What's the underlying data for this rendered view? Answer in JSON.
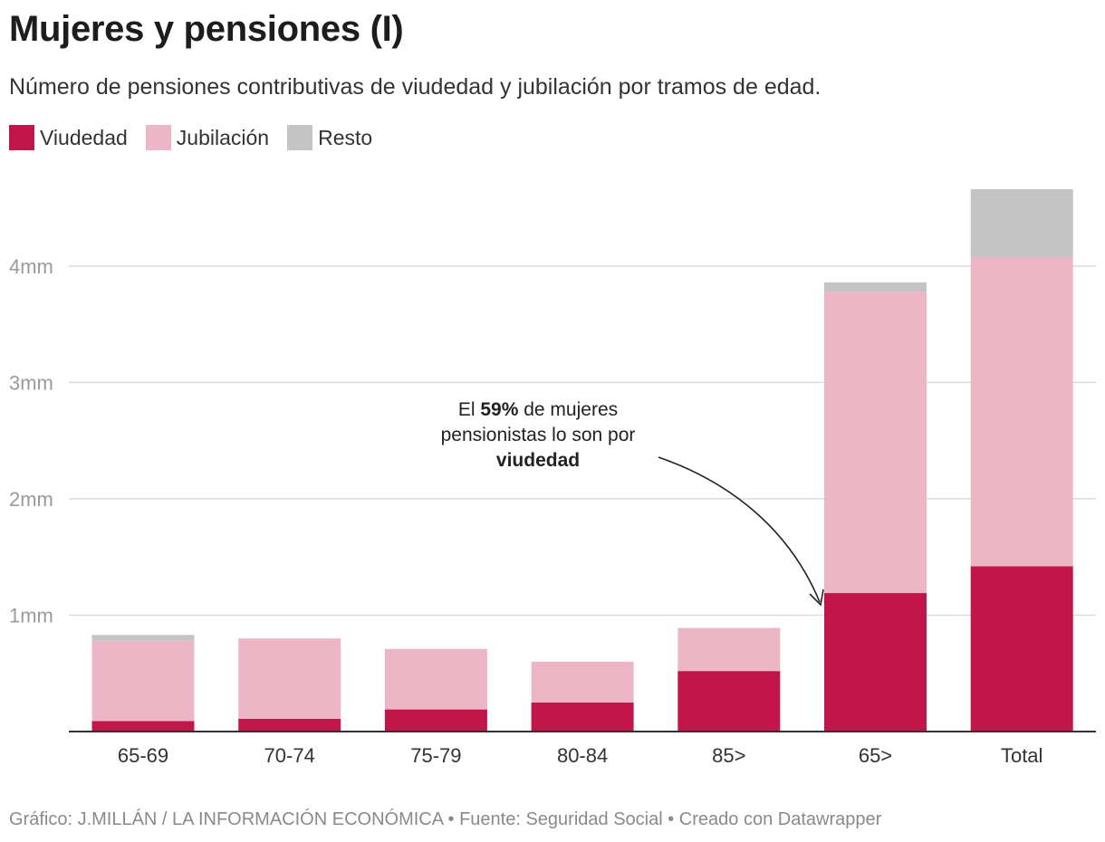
{
  "header": {
    "title": "Mujeres y pensiones (I)",
    "subtitle": "Número de pensiones contributivas de viudedad y jubilación por tramos de edad."
  },
  "footer": {
    "credit": "Gráfico: J.MILLÁN / LA INFORMACIÓN ECONÓMICA • Fuente: Seguridad Social • Creado con Datawrapper"
  },
  "annotation": {
    "line1_pre": "El ",
    "line1_bold": "59%",
    "line1_post": " de mujeres",
    "line2": "pensionistas lo son por",
    "line3_bold": "viudedad"
  },
  "chart_data": {
    "type": "bar",
    "stacked": true,
    "categories": [
      "65-69",
      "70-74",
      "75-79",
      "80-84",
      "85>",
      "65>",
      "Total"
    ],
    "series": [
      {
        "name": "Viudedad",
        "color": "#c2164a",
        "values": [
          0.09,
          0.11,
          0.19,
          0.25,
          0.52,
          1.19,
          1.42
        ]
      },
      {
        "name": "Jubilación",
        "color": "#ecb6c6",
        "values": [
          0.69,
          0.69,
          0.52,
          0.35,
          0.37,
          2.59,
          2.66
        ]
      },
      {
        "name": "Resto",
        "color": "#c4c4c4",
        "values": [
          0.05,
          0.0,
          0.0,
          0.0,
          0.0,
          0.08,
          0.58
        ]
      }
    ],
    "yticks": [
      {
        "value": 1,
        "label": "1mm"
      },
      {
        "value": 2,
        "label": "2mm"
      },
      {
        "value": 3,
        "label": "3mm"
      },
      {
        "value": 4,
        "label": "4mm"
      }
    ],
    "ylim": [
      0,
      4.66
    ],
    "grid": true,
    "legend_position": "top-left"
  }
}
